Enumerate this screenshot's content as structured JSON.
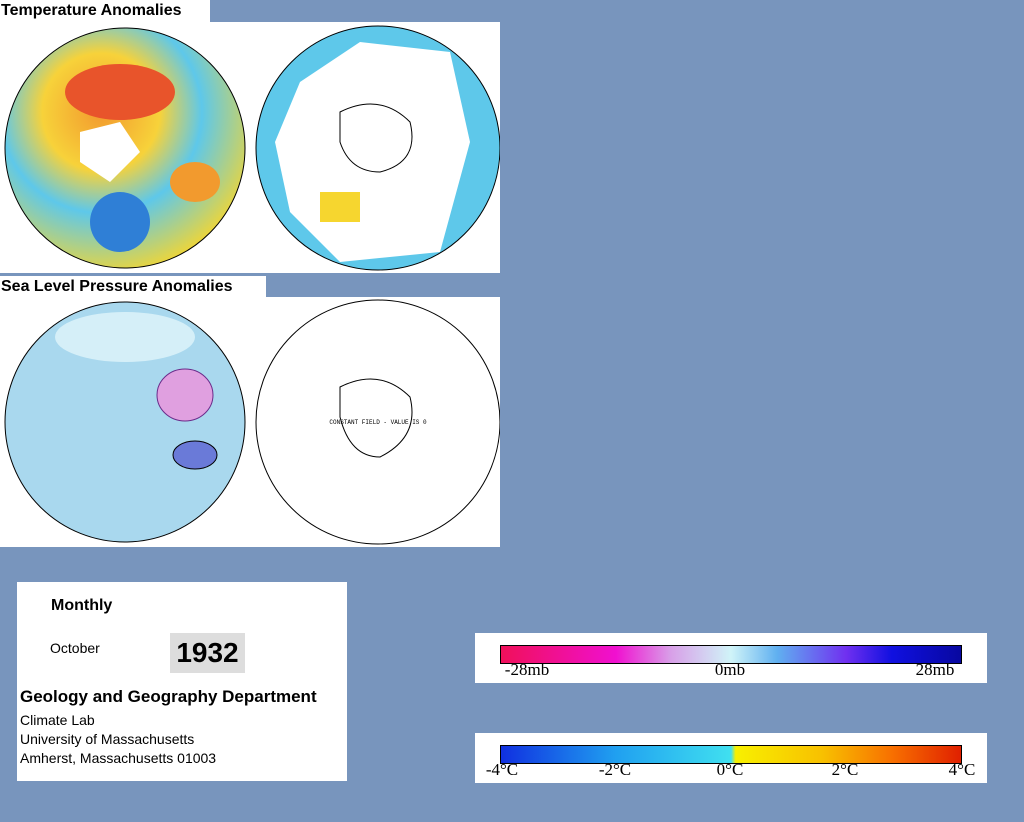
{
  "header": {
    "temperature_title": "Temperature Anomalies",
    "pressure_title": "Sea Level Pressure Anomalies",
    "map_note": "CONSTANT FIELD - VALUE IS 0"
  },
  "info": {
    "period": "Monthly",
    "month": "October",
    "year": "1932",
    "department": "Geology and Geography Department",
    "lines": [
      "Climate Lab",
      "University of Massachusetts",
      "Amherst, Massachusetts 01003"
    ]
  },
  "pressure_scale": {
    "labels": [
      "-28mb",
      "0mb",
      "28mb"
    ]
  },
  "temperature_scale": {
    "labels": [
      "-4°C",
      "-2°C",
      "0°C",
      "2°C",
      "4°C"
    ]
  }
}
